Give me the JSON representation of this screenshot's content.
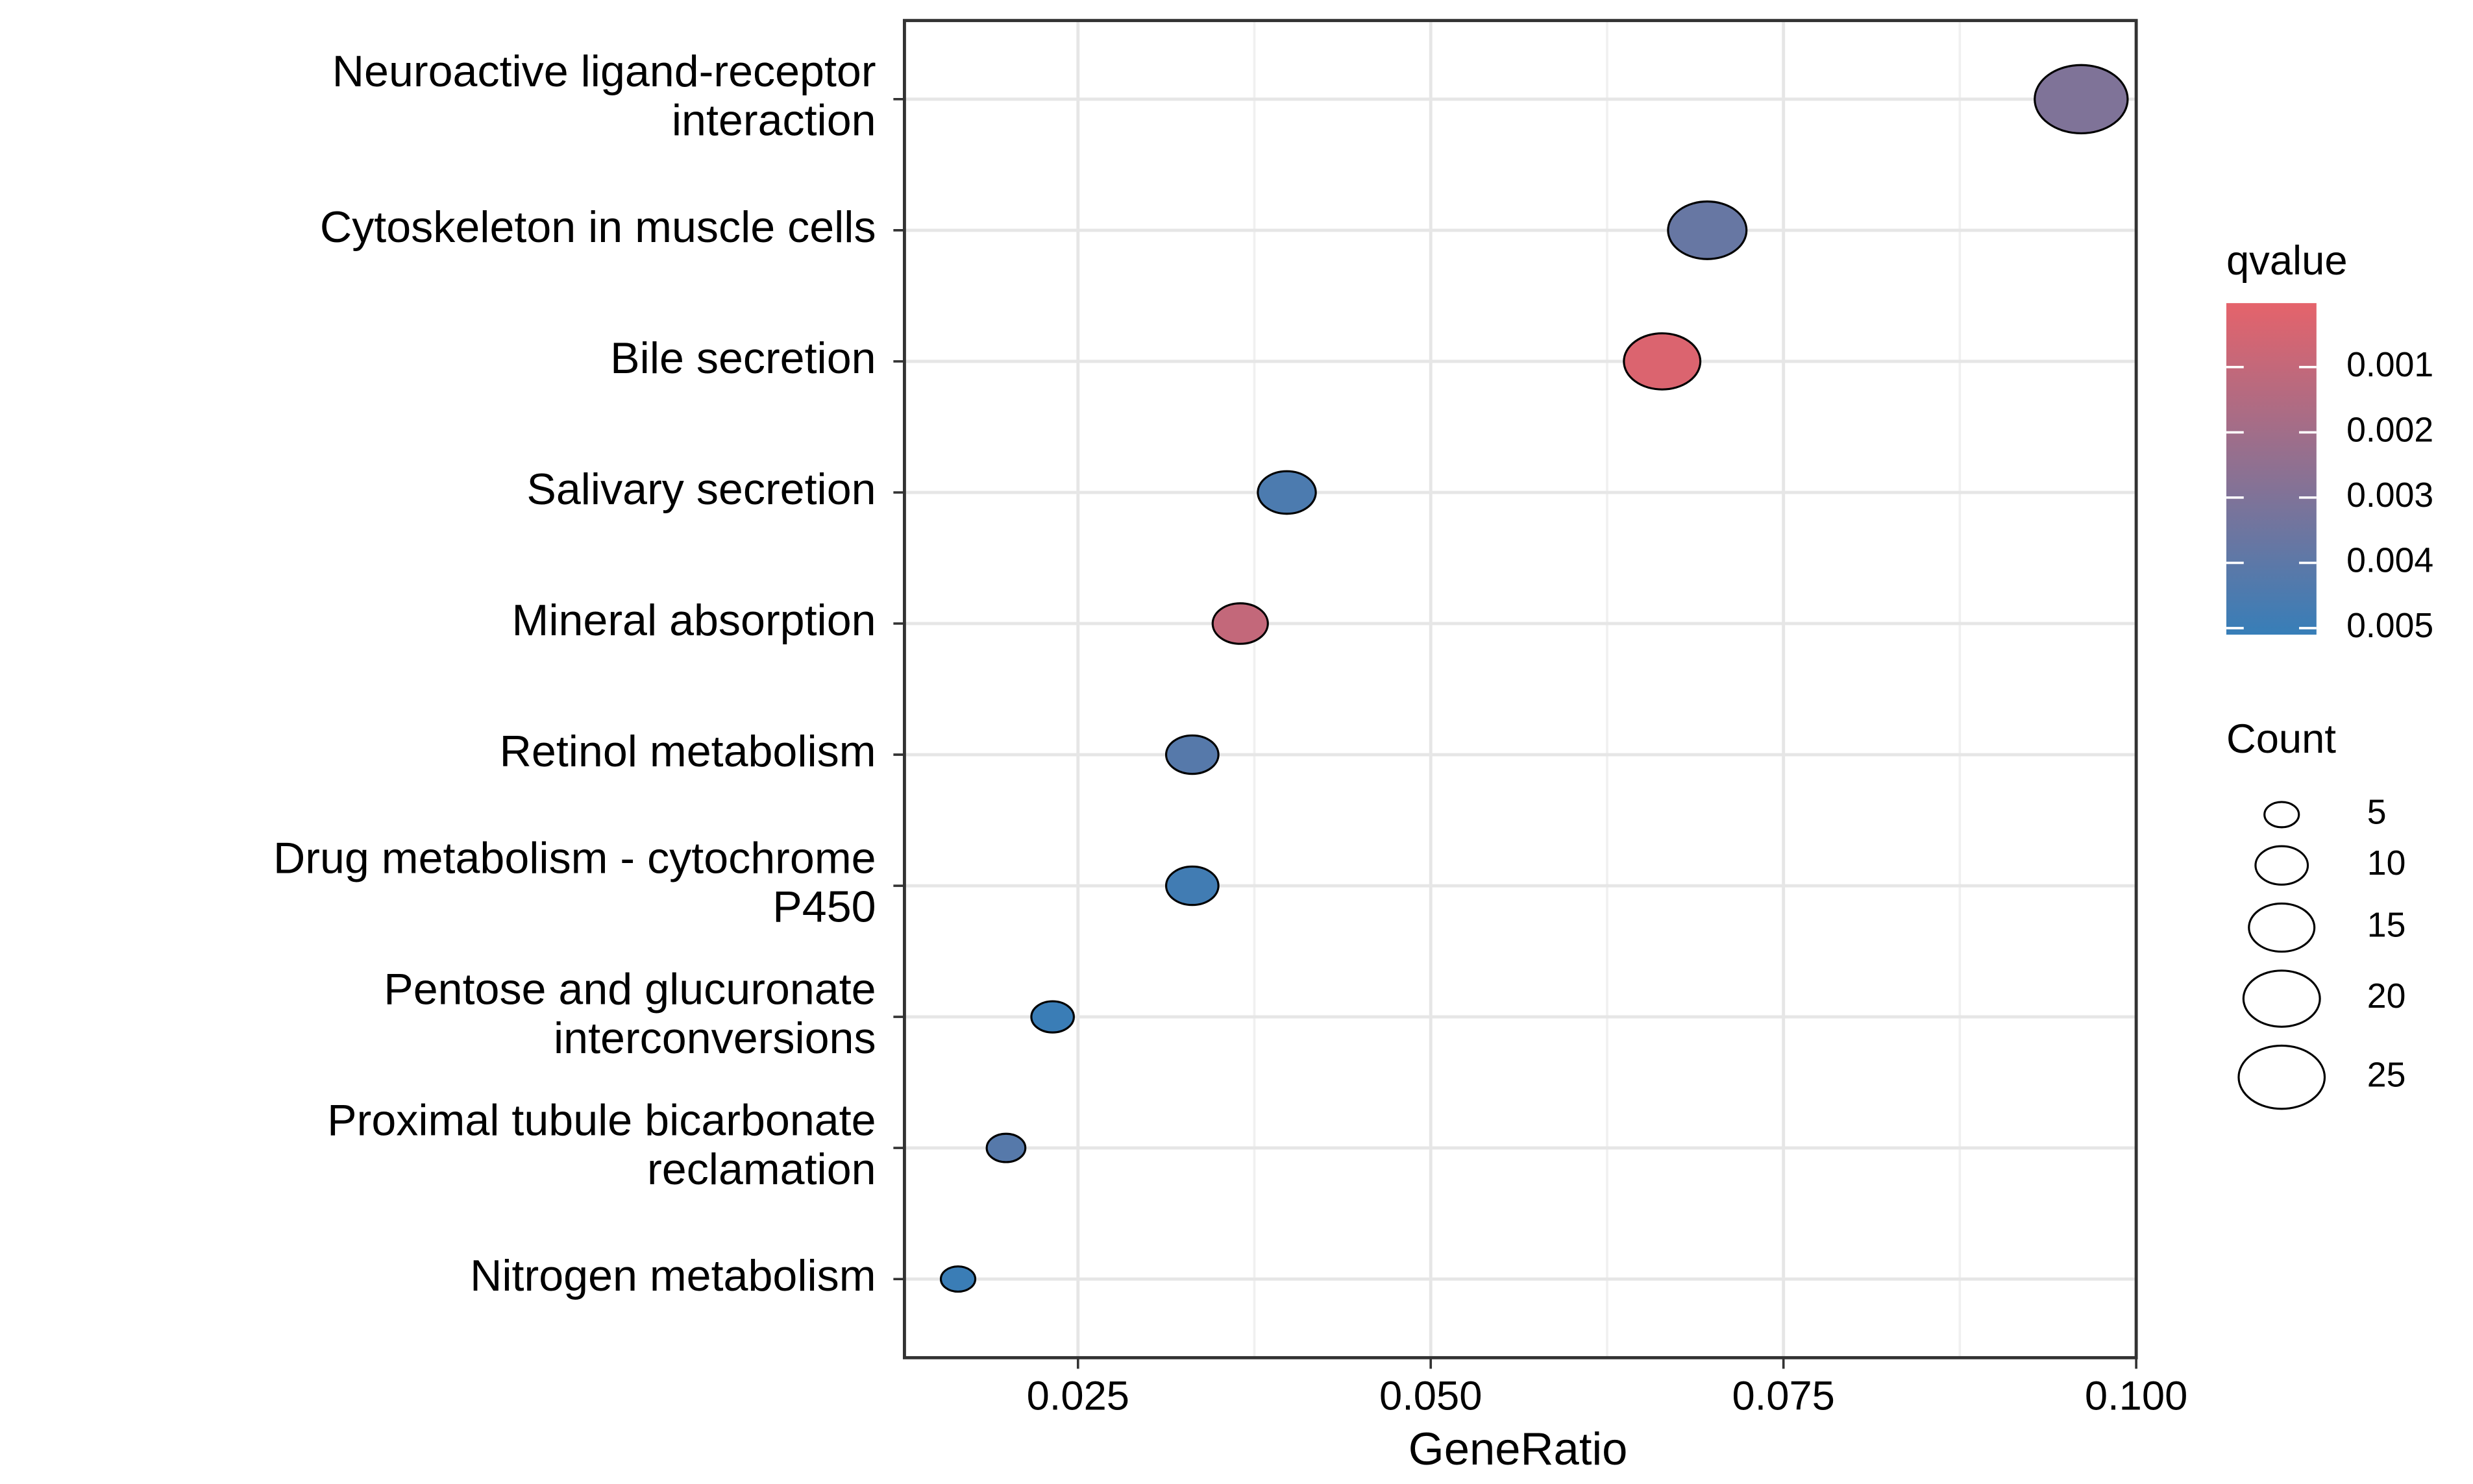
{
  "chart_data": {
    "type": "dot",
    "x_label": "GeneRatio",
    "categories": [
      "Neuroactive ligand-receptor\ninteraction",
      "Cytoskeleton in muscle cells",
      "Bile secretion",
      "Salivary secretion",
      "Mineral absorption",
      "Retinol metabolism",
      "Drug metabolism - cytochrome\nP450",
      "Pentose and glucuronate\ninterconversions",
      "Proximal tubule bicarbonate\nreclamation",
      "Nitrogen metabolism"
    ],
    "x": [
      0.0961,
      0.0696,
      0.0664,
      0.0398,
      0.0365,
      0.0331,
      0.0331,
      0.0232,
      0.0199,
      0.0165
    ],
    "size_values": [
      29,
      21,
      20,
      12,
      11,
      10,
      10,
      7,
      6,
      5
    ],
    "color_values": [
      0.003,
      0.0037,
      0.0003,
      0.0045,
      0.001,
      0.0042,
      0.0048,
      0.005,
      0.0042,
      0.005
    ],
    "xlim": [
      0.0127,
      0.1
    ],
    "xticks": [
      {
        "value": 0.025,
        "label": "0.025"
      },
      {
        "value": 0.05,
        "label": "0.050"
      },
      {
        "value": 0.075,
        "label": "0.075"
      },
      {
        "value": 0.1,
        "label": "0.100"
      }
    ],
    "grid": true,
    "color_legend": {
      "title": "qvalue",
      "lim": [
        2e-05,
        0.0051
      ],
      "ticks": [
        0.001,
        0.002,
        0.003,
        0.004,
        0.005
      ],
      "color_low": "#e5636b",
      "color_high": "#377eb8"
    },
    "size_legend": {
      "title": "Count",
      "ticks": [
        5,
        10,
        15,
        20,
        25
      ]
    }
  }
}
